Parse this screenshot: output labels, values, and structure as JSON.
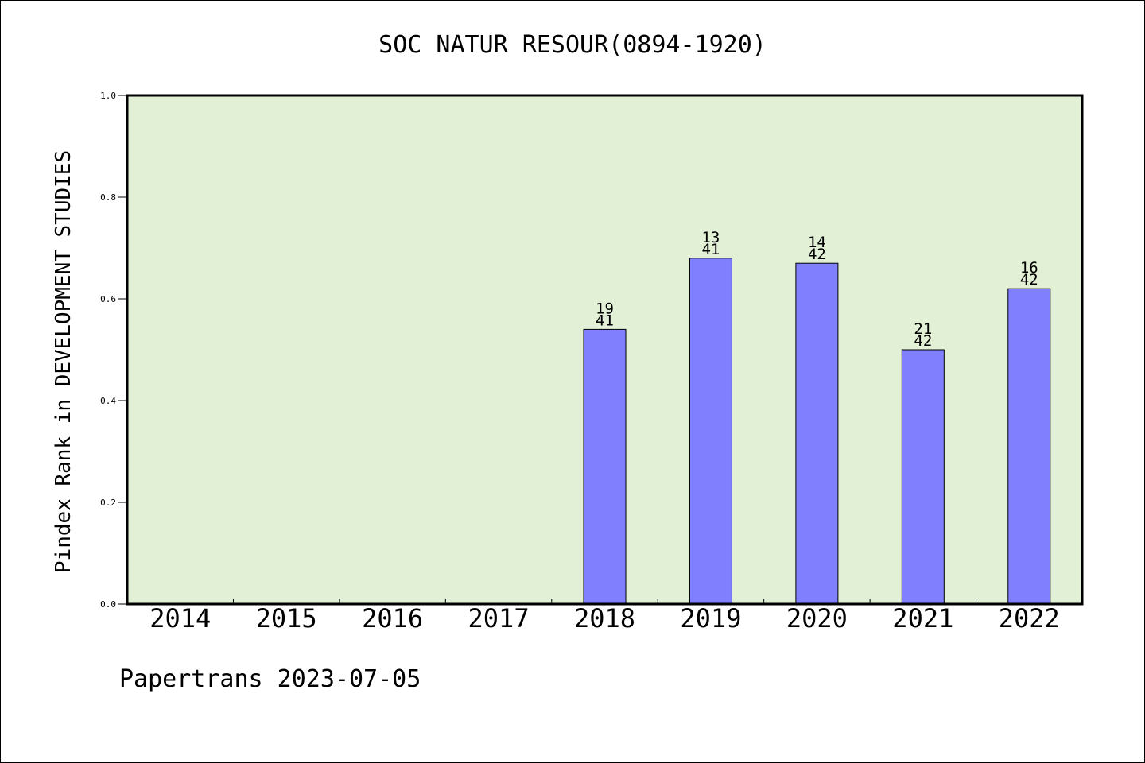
{
  "footer": "Papertrans 2023-07-05",
  "colors": {
    "plot_background": "#e2f0d5",
    "bar_fill": "#8080ff",
    "bar_stroke": "#000000"
  },
  "chart_data": {
    "type": "bar",
    "title": "SOC NATUR RESOUR(0894-1920)",
    "xlabel": "",
    "ylabel": "Pindex Rank in DEVELOPMENT STUDIES",
    "ylim": [
      0,
      1.0
    ],
    "yticks": [
      0.0,
      0.2,
      0.4,
      0.6,
      0.8,
      1.0
    ],
    "ytick_labels": [
      "0.0",
      "0.2",
      "0.4",
      "0.6",
      "0.8",
      "1.0"
    ],
    "grid": false,
    "categories": [
      "2014",
      "2015",
      "2016",
      "2017",
      "2018",
      "2019",
      "2020",
      "2021",
      "2022"
    ],
    "values": [
      null,
      null,
      null,
      null,
      0.54,
      0.68,
      0.67,
      0.5,
      0.62
    ],
    "bar_labels": [
      null,
      null,
      null,
      null,
      {
        "rank": "19",
        "total": "41"
      },
      {
        "rank": "13",
        "total": "41"
      },
      {
        "rank": "14",
        "total": "42"
      },
      {
        "rank": "21",
        "total": "42"
      },
      {
        "rank": "16",
        "total": "42"
      }
    ]
  }
}
